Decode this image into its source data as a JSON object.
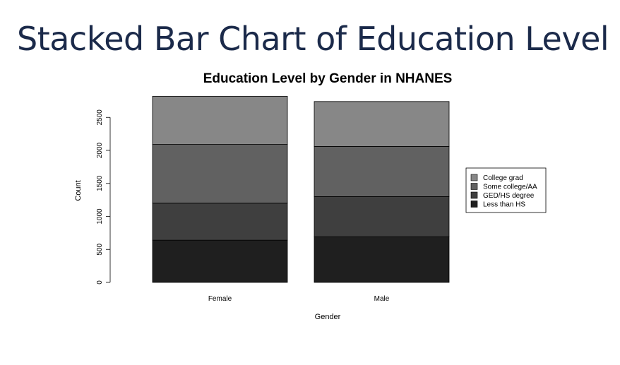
{
  "slide": {
    "title": "Stacked Bar Chart of Education Level"
  },
  "chart_data": {
    "type": "bar",
    "stacked": true,
    "title": "Education Level by Gender in NHANES",
    "xlabel": "Gender",
    "ylabel": "Count",
    "categories": [
      "Female",
      "Male"
    ],
    "ylim": [
      0,
      2800
    ],
    "yticks": [
      0,
      500,
      1000,
      1500,
      2000,
      2500
    ],
    "series": [
      {
        "name": "Less than HS",
        "values": [
          640,
          690
        ],
        "color": "#1f1f1f"
      },
      {
        "name": "GED/HS degree",
        "values": [
          560,
          610
        ],
        "color": "#3f3f3f"
      },
      {
        "name": "Some college/AA",
        "values": [
          890,
          760
        ],
        "color": "#616161"
      },
      {
        "name": "College grad",
        "values": [
          730,
          680
        ],
        "color": "#878787"
      }
    ],
    "legend": {
      "position": "right",
      "order": [
        "College grad",
        "Some college/AA",
        "GED/HS degree",
        "Less than HS"
      ]
    },
    "grid": false
  }
}
